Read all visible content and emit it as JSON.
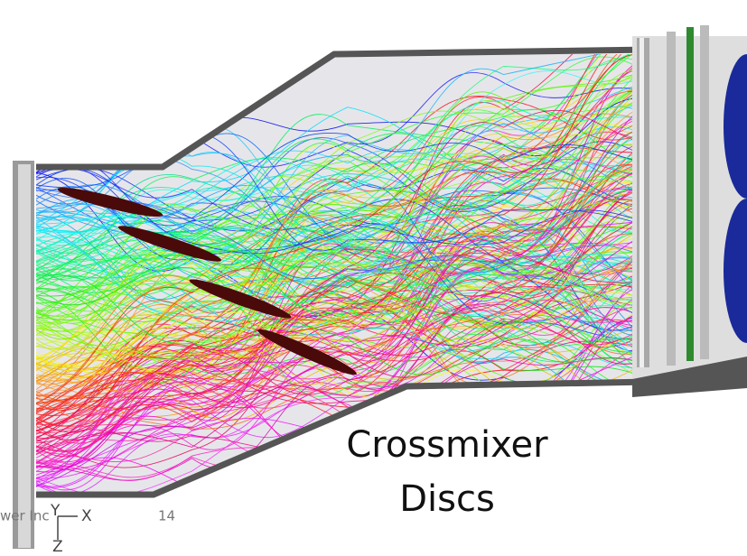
{
  "caption": {
    "lines": [
      "Crossmixer",
      "Discs"
    ]
  },
  "footer": {
    "company": "wer Inc",
    "page_number": "14"
  },
  "axes": {
    "y": "Y",
    "x": "X",
    "z": "Z"
  }
}
